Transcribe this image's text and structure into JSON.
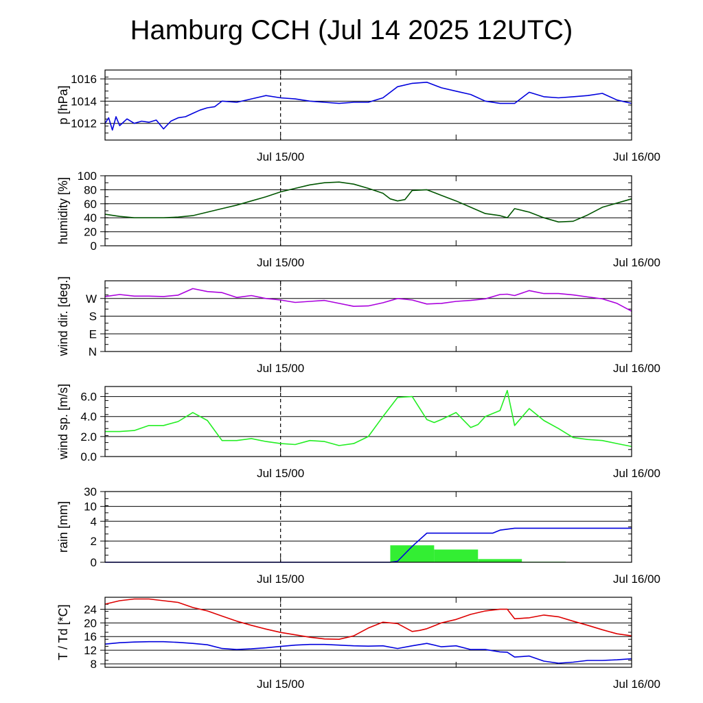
{
  "title": "Hamburg CCH (Jul 14 2025 12UTC)",
  "x_tick_labels": [
    "Jul 15/00",
    "Jul 16/00"
  ],
  "chart_data": [
    {
      "type": "line",
      "id": "pressure",
      "ylabel": "p [hPa]",
      "ylim": [
        1010.5,
        1016.8
      ],
      "yticks": [
        1012,
        1014,
        1016
      ],
      "ytick_labels": [
        "1012",
        "1014",
        "1016"
      ],
      "xlim": [
        0,
        36
      ],
      "x_unit": "hours since Jul 14 12UTC",
      "series": [
        {
          "color": "#0000dd",
          "x": [
            0,
            0.25,
            0.5,
            0.75,
            1,
            1.5,
            2,
            2.5,
            3,
            3.5,
            4,
            4.5,
            5,
            5.5,
            6,
            6.5,
            7,
            7.5,
            8,
            9,
            10,
            11,
            12,
            13,
            14,
            15,
            16,
            17,
            18,
            19,
            20,
            21,
            22,
            23,
            24,
            25,
            26,
            27,
            28,
            29,
            30,
            31,
            32,
            33,
            34,
            35,
            36
          ],
          "y": [
            1012.0,
            1012.5,
            1011.4,
            1012.6,
            1011.8,
            1012.4,
            1012.0,
            1012.2,
            1012.1,
            1012.3,
            1011.5,
            1012.2,
            1012.5,
            1012.6,
            1012.9,
            1013.2,
            1013.4,
            1013.5,
            1014.0,
            1013.9,
            1014.2,
            1014.5,
            1014.3,
            1014.2,
            1014.0,
            1013.9,
            1013.8,
            1013.9,
            1013.9,
            1014.3,
            1015.3,
            1015.6,
            1015.7,
            1015.2,
            1014.9,
            1014.6,
            1014.0,
            1013.8,
            1013.8,
            1014.8,
            1014.4,
            1014.3,
            1014.4,
            1014.5,
            1014.7,
            1014.1,
            1013.8
          ]
        }
      ]
    },
    {
      "type": "line",
      "id": "humidity",
      "ylabel": "humidity [%]",
      "ylim": [
        0,
        100
      ],
      "yticks": [
        0,
        20,
        40,
        60,
        80,
        100
      ],
      "ytick_labels": [
        "0",
        "20",
        "40",
        "60",
        "80",
        "100"
      ],
      "xlim": [
        0,
        36
      ],
      "series": [
        {
          "color": "#005500",
          "x": [
            0,
            1,
            2,
            3,
            4,
            5,
            6,
            7,
            8,
            9,
            10,
            11,
            12,
            13,
            14,
            15,
            16,
            17,
            18,
            19,
            19.5,
            20,
            20.5,
            21,
            22,
            23,
            24,
            25,
            26,
            27,
            27.5,
            28,
            29,
            30,
            31,
            32,
            33,
            34,
            35,
            36
          ],
          "y": [
            45,
            42,
            40,
            40,
            40,
            41,
            43,
            48,
            53,
            58,
            64,
            70,
            77,
            82,
            87,
            90,
            91,
            88,
            82,
            75,
            67,
            64,
            66,
            79,
            80,
            72,
            64,
            55,
            46,
            43,
            40,
            53,
            48,
            40,
            34,
            35,
            44,
            55,
            61,
            67
          ]
        }
      ]
    },
    {
      "type": "line",
      "id": "wind_direction",
      "ylabel": "wind dir. [deg.]",
      "ylim": [
        0,
        360
      ],
      "yticks": [
        0,
        90,
        180,
        270
      ],
      "ytick_labels": [
        "N",
        "E",
        "S",
        "W"
      ],
      "xlim": [
        0,
        36
      ],
      "series": [
        {
          "color": "#aa00dd",
          "x": [
            0,
            1,
            2,
            3,
            4,
            5,
            6,
            7,
            8,
            9,
            10,
            11,
            12,
            13,
            14,
            15,
            16,
            17,
            18,
            19,
            20,
            21,
            22,
            23,
            24,
            25,
            26,
            27,
            27.5,
            28,
            29,
            30,
            31,
            32,
            33,
            34,
            35,
            36
          ],
          "y": [
            280,
            290,
            282,
            282,
            280,
            287,
            320,
            305,
            300,
            275,
            285,
            270,
            262,
            250,
            255,
            260,
            245,
            230,
            232,
            248,
            270,
            262,
            242,
            245,
            255,
            260,
            268,
            290,
            292,
            285,
            310,
            295,
            295,
            288,
            278,
            268,
            245,
            205
          ]
        }
      ]
    },
    {
      "type": "line",
      "id": "wind_speed",
      "ylabel": "wind sp. [m/s]",
      "ylim": [
        0,
        7.0
      ],
      "yticks": [
        0,
        2,
        4,
        6
      ],
      "ytick_labels": [
        "0.0",
        "2.0",
        "4.0",
        "6.0"
      ],
      "xlim": [
        0,
        36
      ],
      "series": [
        {
          "color": "#22ee22",
          "x": [
            0,
            1,
            2,
            3,
            4,
            5,
            6,
            7,
            8,
            9,
            10,
            11,
            12,
            13,
            14,
            15,
            16,
            17,
            18,
            19,
            20,
            21,
            22,
            22.5,
            23,
            24,
            25,
            25.5,
            26,
            27,
            27.5,
            28,
            29,
            30,
            31,
            32,
            33,
            34,
            35,
            36
          ],
          "y": [
            2.5,
            2.5,
            2.6,
            3.1,
            3.1,
            3.5,
            4.4,
            3.6,
            1.6,
            1.6,
            1.8,
            1.5,
            1.3,
            1.2,
            1.6,
            1.5,
            1.1,
            1.3,
            2.0,
            4.0,
            5.9,
            6.0,
            3.7,
            3.4,
            3.7,
            4.4,
            2.9,
            3.2,
            4.0,
            4.6,
            6.6,
            3.1,
            4.8,
            3.6,
            2.8,
            1.9,
            1.7,
            1.6,
            1.3,
            1.0
          ]
        }
      ]
    },
    {
      "type": "bar",
      "id": "rain",
      "ylabel": "rain [mm]",
      "y_scale": "nonlinear",
      "yticks": [
        0,
        2,
        4,
        10,
        30
      ],
      "ytick_labels": [
        "0",
        "2",
        "4",
        "10",
        "30"
      ],
      "xlim": [
        0,
        36
      ],
      "bars": {
        "color": "#33ee33",
        "x_start": [
          19.5,
          22.5,
          25.5,
          28.5
        ],
        "x_end": [
          22.5,
          25.5,
          28.5,
          31.5
        ],
        "values": [
          1.6,
          1.2,
          0.3,
          0.05
        ]
      },
      "series": [
        {
          "color": "#0000dd",
          "x": [
            0,
            19.5,
            20,
            21,
            22,
            23,
            26.5,
            27,
            28,
            29,
            30,
            36
          ],
          "y": [
            0,
            0,
            0.1,
            1.5,
            2.8,
            2.8,
            2.8,
            3.1,
            3.3,
            3.3,
            3.3,
            3.3
          ]
        }
      ]
    },
    {
      "type": "line",
      "id": "temperature_dewpoint",
      "ylabel": "T / Td [*C]",
      "ylim": [
        7,
        27.5
      ],
      "yticks": [
        8,
        12,
        16,
        20,
        24
      ],
      "ytick_labels": [
        "8",
        "12",
        "16",
        "20",
        "24"
      ],
      "xlim": [
        0,
        36
      ],
      "series": [
        {
          "color": "#dd0000",
          "x": [
            0,
            1,
            2,
            3,
            4,
            5,
            6,
            7,
            8,
            9,
            10,
            11,
            12,
            13,
            14,
            15,
            16,
            17,
            18,
            19,
            20,
            21,
            21.5,
            22,
            23,
            24,
            25,
            26,
            27,
            27.5,
            28,
            29,
            30,
            31,
            32,
            33,
            34,
            35,
            36
          ],
          "y": [
            25.5,
            26.5,
            27,
            27,
            26.5,
            26,
            24.5,
            23.5,
            22,
            20.5,
            19.3,
            18.2,
            17.2,
            16.5,
            15.8,
            15.3,
            15.2,
            16.2,
            18.5,
            20.2,
            19.8,
            17.5,
            17.8,
            18.3,
            20,
            21,
            22.5,
            23.5,
            24,
            24,
            21.2,
            21.5,
            22.3,
            21.8,
            20.5,
            19.3,
            18,
            16.8,
            16.2
          ]
        }
      ]
    },
    {
      "type": "line",
      "id": "dewpoint",
      "xlim": [
        0,
        36
      ],
      "shares_axes_with": "temperature_dewpoint",
      "series": [
        {
          "color": "#0000dd",
          "x": [
            0,
            1,
            2,
            3,
            4,
            5,
            6,
            7,
            8,
            9,
            10,
            11,
            12,
            13,
            14,
            15,
            16,
            17,
            18,
            19,
            20,
            21,
            22,
            23,
            24,
            25,
            26,
            27,
            27.5,
            28,
            29,
            30,
            31,
            32,
            33,
            34,
            35,
            36
          ],
          "y": [
            13.8,
            14.2,
            14.4,
            14.5,
            14.5,
            14.3,
            14,
            13.6,
            12.5,
            12.2,
            12.4,
            12.7,
            13.1,
            13.5,
            13.7,
            13.7,
            13.5,
            13.3,
            13.2,
            13.3,
            12.5,
            13.3,
            14,
            13,
            13.3,
            12.2,
            12.2,
            11.5,
            11.4,
            10,
            10.3,
            8.8,
            8.2,
            8.5,
            9,
            9,
            9.2,
            9.5
          ]
        }
      ]
    }
  ]
}
